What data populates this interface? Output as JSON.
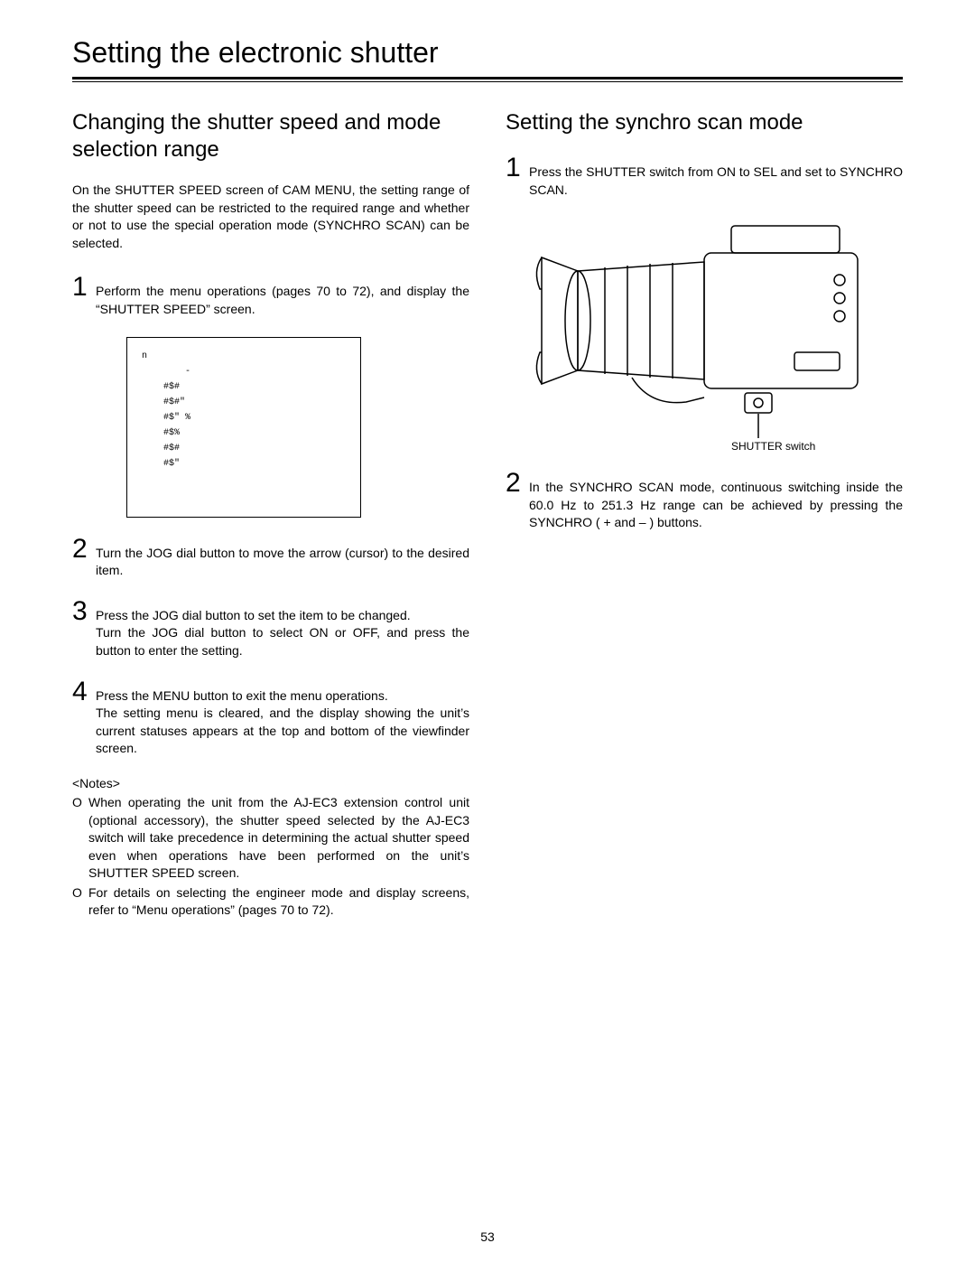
{
  "page": {
    "title": "Setting the electronic shutter",
    "number": "53"
  },
  "left": {
    "heading": "Changing the shutter speed and mode selection range",
    "intro": "On the SHUTTER SPEED screen of CAM MENU, the setting range of the shutter speed can be restricted to the required range and whether or not to use the special operation mode (SYNCHRO SCAN) can be selected.",
    "steps": [
      {
        "num": "1",
        "text": "Perform the menu operations (pages 70 to 72), and display the “SHUTTER SPEED” screen."
      },
      {
        "num": "2",
        "text": "Turn the JOG dial button to move the arrow (cursor) to the desired item."
      },
      {
        "num": "3",
        "text": "Press the JOG dial button to set the item to be changed.\nTurn the JOG dial button to select ON or OFF, and press the button to enter the setting."
      },
      {
        "num": "4",
        "text": "Press the MENU button to exit the menu operations.\nThe setting menu is cleared, and the display showing the unit’s current statuses appears at the top and bottom of the viewfinder screen."
      }
    ],
    "menu_box": "n\n        -\n    #$#\n    #$#\"\n    #$\" %\n    #$%\n    #$#\n    #$\"",
    "notes_heading": "<Notes>",
    "notes": [
      "When operating the unit from the AJ-EC3 extension control unit (optional accessory), the shutter speed selected by the AJ-EC3 switch will take precedence in determining the actual shutter speed even when operations have been performed on the unit’s SHUTTER SPEED screen.",
      "For details on selecting the engineer mode and display screens, refer to “Menu operations” (pages 70 to 72)."
    ]
  },
  "right": {
    "heading": "Setting the synchro scan mode",
    "steps": [
      {
        "num": "1",
        "text": "Press the SHUTTER switch from ON to SEL and set to SYNCHRO SCAN."
      },
      {
        "num": "2",
        "text": "In the SYNCHRO SCAN mode, continuous switching inside the 60.0 Hz to 251.3 Hz range can be achieved by pressing the SYNCHRO ( + and – ) buttons."
      }
    ],
    "figure_caption": "SHUTTER switch"
  }
}
